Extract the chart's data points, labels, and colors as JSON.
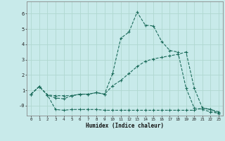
{
  "xlabel": "Humidex (Indice chaleur)",
  "bg_color": "#c8eaea",
  "grid_color": "#b0d8d0",
  "line_color": "#1a6b5a",
  "xlim": [
    -0.5,
    23.5
  ],
  "ylim": [
    -0.65,
    6.8
  ],
  "yticks": [
    0,
    1,
    2,
    3,
    4,
    5,
    6
  ],
  "ytick_labels": [
    "-0",
    "1",
    "2",
    "3",
    "4",
    "5",
    "6"
  ],
  "line1_x": [
    0,
    1,
    2,
    3,
    4,
    5,
    6,
    7,
    8,
    9,
    10,
    11,
    12,
    13,
    14,
    15,
    16,
    17,
    18,
    19,
    20,
    21,
    22,
    23
  ],
  "line1_y": [
    0.75,
    1.25,
    0.7,
    0.65,
    0.65,
    0.65,
    0.75,
    0.75,
    0.85,
    0.75,
    2.1,
    4.4,
    4.8,
    6.1,
    5.25,
    5.2,
    4.2,
    3.6,
    3.5,
    1.15,
    -0.15,
    -0.25,
    -0.4,
    -0.5
  ],
  "line2_x": [
    0,
    1,
    2,
    3,
    4,
    5,
    6,
    7,
    8,
    9,
    10,
    11,
    12,
    13,
    14,
    15,
    16,
    17,
    18,
    19,
    20,
    21,
    22,
    23
  ],
  "line2_y": [
    0.75,
    1.25,
    0.7,
    0.5,
    0.45,
    0.65,
    0.75,
    0.75,
    0.85,
    0.75,
    1.3,
    1.65,
    2.1,
    2.55,
    2.9,
    3.05,
    3.15,
    3.25,
    3.35,
    3.5,
    1.15,
    -0.15,
    -0.25,
    -0.4
  ],
  "line3_x": [
    0,
    1,
    2,
    3,
    4,
    5,
    6,
    7,
    8,
    9,
    10,
    11,
    12,
    13,
    14,
    15,
    16,
    17,
    18,
    19,
    20,
    21,
    22,
    23
  ],
  "line3_y": [
    0.75,
    1.25,
    0.7,
    -0.25,
    -0.3,
    -0.25,
    -0.25,
    -0.25,
    -0.25,
    -0.3,
    -0.3,
    -0.3,
    -0.3,
    -0.3,
    -0.3,
    -0.3,
    -0.3,
    -0.3,
    -0.3,
    -0.3,
    -0.3,
    -0.15,
    -0.25,
    -0.5
  ]
}
